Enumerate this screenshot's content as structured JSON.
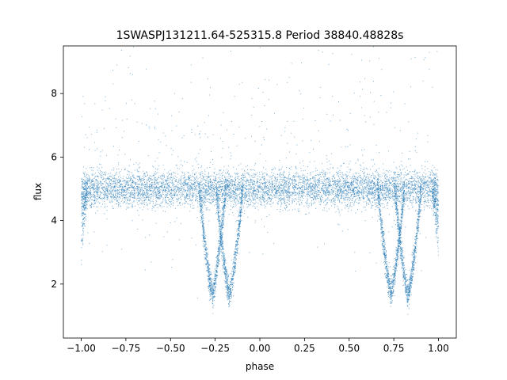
{
  "chart_data": {
    "type": "scatter",
    "title": "1SWASPJ131211.64-525315.8 Period 38840.48828s",
    "xlabel": "phase",
    "ylabel": "flux",
    "xlim": [
      -1.1,
      1.1
    ],
    "ylim": [
      0.3,
      9.5
    ],
    "xticks": [
      -1.0,
      -0.75,
      -0.5,
      -0.25,
      0.0,
      0.25,
      0.5,
      0.75,
      1.0
    ],
    "xtick_labels": [
      "−1.00",
      "−0.75",
      "−0.50",
      "−0.25",
      "0.00",
      "0.25",
      "0.50",
      "0.75",
      "1.00"
    ],
    "yticks": [
      2,
      4,
      6,
      8
    ],
    "ytick_labels": [
      "2",
      "4",
      "6",
      "8"
    ],
    "grid": false,
    "marker_color": "#1f77b4",
    "baseline_flux": 5.0,
    "baseline_scatter": 0.28,
    "phase_range": [
      -1.0,
      1.0
    ],
    "eclipses": [
      {
        "center_phase": -0.265,
        "min_flux": 1.7
      },
      {
        "center_phase": -0.17,
        "min_flux": 1.65
      },
      {
        "center_phase": 0.735,
        "min_flux": 1.7
      },
      {
        "center_phase": 0.83,
        "min_flux": 1.65
      }
    ]
  }
}
